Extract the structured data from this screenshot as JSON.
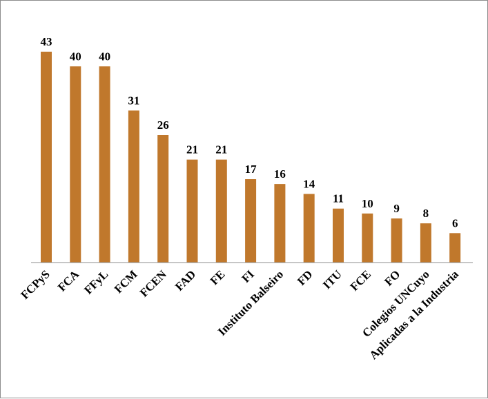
{
  "chart_data": {
    "type": "bar",
    "categories": [
      "FCPyS",
      "FCA",
      "FFyL",
      "FCM",
      "FCEN",
      "FAD",
      "FE",
      "FI",
      "Instituto Balseiro",
      "FD",
      "ITU",
      "FCE",
      "FO",
      "Colegios UNCuyo",
      "Aplicadas a la Industria"
    ],
    "values": [
      43,
      40,
      40,
      31,
      26,
      21,
      21,
      17,
      16,
      14,
      11,
      10,
      9,
      8,
      6
    ],
    "data_labels": [
      "43",
      "40",
      "40",
      "31",
      "26",
      "21",
      "21",
      "17",
      "16",
      "14",
      "11",
      "10",
      "9",
      "8",
      "6"
    ],
    "bar_color": "#c0782c",
    "axis_color": "#8c8c8c",
    "ylim": [
      0,
      43
    ],
    "grid": false,
    "legend": "none"
  }
}
